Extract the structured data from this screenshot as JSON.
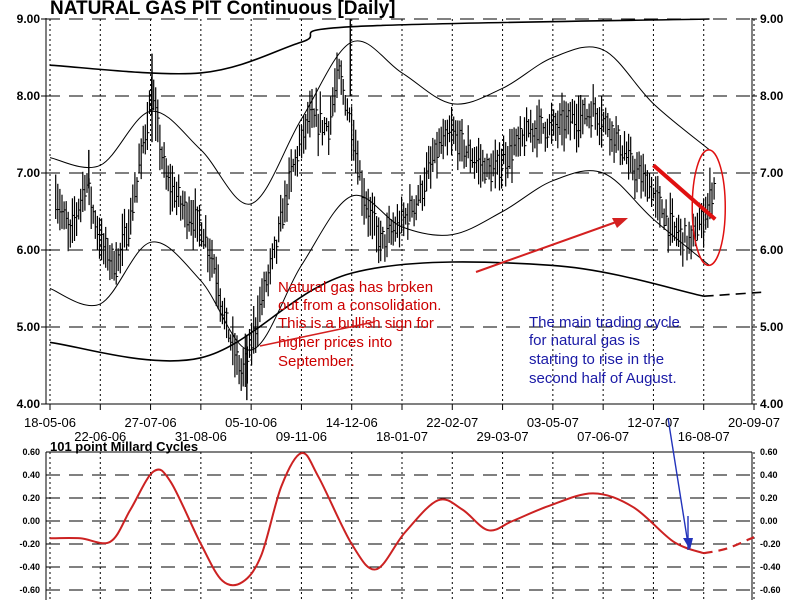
{
  "colors": {
    "cycle": "#cc2222",
    "trend": "#e01010",
    "annotation_red": "#cc0000",
    "annotation_blue": "#1a1aa6",
    "arrow_blue": "#2233bb"
  },
  "chart_data": [
    {
      "type": "candlestick",
      "title": "NATURAL GAS PIT Continuous  [Daily]",
      "ylim": [
        4.0,
        9.0
      ],
      "y_ticks": [
        "9.00",
        "8.00",
        "7.00",
        "6.00",
        "5.00",
        "4.00"
      ],
      "x_labels_top": [
        "18-05-06",
        "27-07-06",
        "05-10-06",
        "14-12-06",
        "22-02-07",
        "03-05-07",
        "12-07-07",
        "20-09-07"
      ],
      "x_labels_bottom": [
        "22-06-06",
        "31-08-06",
        "09-11-06",
        "18-01-07",
        "29-03-07",
        "07-06-07",
        "16-08-07"
      ],
      "x_dates": [
        "2006-05-18",
        "2006-06-22",
        "2006-07-27",
        "2006-08-31",
        "2006-10-05",
        "2006-11-09",
        "2006-12-14",
        "2007-01-18",
        "2007-02-22",
        "2007-03-29",
        "2007-05-03",
        "2007-06-07",
        "2007-07-12",
        "2007-08-16",
        "2007-09-20"
      ],
      "grid": true,
      "price_path": [
        [
          "2006-05-22",
          6.7
        ],
        [
          "2006-06-01",
          6.2
        ],
        [
          "2006-06-12",
          6.9
        ],
        [
          "2006-06-22",
          6.1
        ],
        [
          "2006-07-03",
          5.8
        ],
        [
          "2006-07-13",
          6.4
        ],
        [
          "2006-07-24",
          7.6
        ],
        [
          "2006-07-28",
          8.0
        ],
        [
          "2006-08-07",
          6.9
        ],
        [
          "2006-08-21",
          6.5
        ],
        [
          "2006-08-31",
          6.3
        ],
        [
          "2006-09-08",
          5.9
        ],
        [
          "2006-09-18",
          5.0
        ],
        [
          "2006-09-28",
          4.4
        ],
        [
          "2006-10-03",
          4.6
        ],
        [
          "2006-10-13",
          5.4
        ],
        [
          "2006-10-23",
          6.1
        ],
        [
          "2006-11-02",
          7.0
        ],
        [
          "2006-11-14",
          7.7
        ],
        [
          "2006-11-28",
          7.6
        ],
        [
          "2006-12-05",
          8.3
        ],
        [
          "2006-12-14",
          7.6
        ],
        [
          "2006-12-22",
          6.7
        ],
        [
          "2007-01-03",
          6.1
        ],
        [
          "2007-01-16",
          6.3
        ],
        [
          "2007-01-30",
          6.7
        ],
        [
          "2007-02-12",
          7.3
        ],
        [
          "2007-02-22",
          7.5
        ],
        [
          "2007-03-08",
          7.2
        ],
        [
          "2007-03-22",
          7.0
        ],
        [
          "2007-04-05",
          7.3
        ],
        [
          "2007-04-20",
          7.6
        ],
        [
          "2007-05-03",
          7.6
        ],
        [
          "2007-05-18",
          7.7
        ],
        [
          "2007-06-01",
          7.8
        ],
        [
          "2007-06-12",
          7.6
        ],
        [
          "2007-06-26",
          7.1
        ],
        [
          "2007-07-10",
          6.8
        ],
        [
          "2007-07-24",
          6.3
        ],
        [
          "2007-08-06",
          6.1
        ],
        [
          "2007-08-16",
          6.4
        ],
        [
          "2007-08-24",
          6.9
        ]
      ],
      "envelope_bands": [
        {
          "name": "upper",
          "points": [
            [
              "2006-05-18",
              7.2
            ],
            [
              "2006-06-22",
              7.1
            ],
            [
              "2006-07-27",
              7.8
            ],
            [
              "2006-08-31",
              7.3
            ],
            [
              "2006-10-05",
              6.6
            ],
            [
              "2006-11-09",
              7.7
            ],
            [
              "2006-12-14",
              8.7
            ],
            [
              "2007-01-18",
              8.3
            ],
            [
              "2007-02-22",
              7.9
            ],
            [
              "2007-03-29",
              8.1
            ],
            [
              "2007-05-03",
              8.5
            ],
            [
              "2007-06-07",
              8.6
            ],
            [
              "2007-07-12",
              7.9
            ],
            [
              "2007-08-20",
              7.3
            ]
          ]
        },
        {
          "name": "lower",
          "points": [
            [
              "2006-05-18",
              5.5
            ],
            [
              "2006-06-22",
              5.3
            ],
            [
              "2006-07-27",
              6.1
            ],
            [
              "2006-08-31",
              5.6
            ],
            [
              "2006-10-05",
              4.7
            ],
            [
              "2006-11-09",
              5.8
            ],
            [
              "2006-12-14",
              6.7
            ],
            [
              "2007-01-18",
              6.3
            ],
            [
              "2007-02-22",
              6.2
            ],
            [
              "2007-03-29",
              6.5
            ],
            [
              "2007-05-03",
              6.9
            ],
            [
              "2007-06-07",
              7.0
            ],
            [
              "2007-07-12",
              6.4
            ],
            [
              "2007-08-20",
              5.8
            ]
          ]
        },
        {
          "name": "outer-top",
          "points": [
            [
              "2006-05-18",
              8.4
            ],
            [
              "2006-08-31",
              8.3
            ],
            [
              "2006-11-09",
              8.7
            ],
            [
              "2006-12-14",
              8.9
            ],
            [
              "2007-08-20",
              9.0
            ]
          ]
        },
        {
          "name": "outer-bottom",
          "points": [
            [
              "2006-05-18",
              4.8
            ],
            [
              "2006-08-31",
              4.6
            ],
            [
              "2006-12-14",
              5.7
            ],
            [
              "2007-05-03",
              5.8
            ],
            [
              "2007-08-16",
              5.4
            ]
          ]
        },
        {
          "name": "outer-bottom-projection",
          "dashed": true,
          "points": [
            [
              "2007-08-16",
              5.4
            ],
            [
              "2007-09-25",
              5.45
            ]
          ]
        }
      ],
      "trendline": [
        [
          "2007-07-12",
          7.1
        ],
        [
          "2007-08-24",
          6.4
        ]
      ],
      "highlight_ellipse_range": {
        "x": [
          "2007-08-08",
          "2007-08-31"
        ],
        "y": [
          5.8,
          7.3
        ]
      },
      "annotations": [
        {
          "id": "breakout",
          "color": "red",
          "lines": [
            "Natural gas has broken",
            "out from a consolidation.",
            "This is a bullish sign for",
            "higher prices into",
            "September."
          ]
        },
        {
          "id": "cycle",
          "color": "blue",
          "lines": [
            "The main trading cycle",
            "for natural gas is",
            "starting to  rise in the",
            "second half of August."
          ]
        }
      ]
    },
    {
      "type": "line",
      "title": "101 point Millard Cycles",
      "ylim": [
        -0.6,
        0.6
      ],
      "y_ticks": [
        "0.60",
        "0.40",
        "0.20",
        "0.00",
        "-0.20",
        "-0.40",
        "-0.60"
      ],
      "series": [
        {
          "values": [
            [
              "2006-05-18",
              -0.15
            ],
            [
              "2006-06-08",
              -0.15
            ],
            [
              "2006-06-29",
              -0.18
            ],
            [
              "2006-07-13",
              0.1
            ],
            [
              "2006-07-29",
              0.43
            ],
            [
              "2006-08-10",
              0.34
            ],
            [
              "2006-08-31",
              -0.2
            ],
            [
              "2006-09-15",
              -0.52
            ],
            [
              "2006-09-29",
              -0.53
            ],
            [
              "2006-10-12",
              -0.3
            ],
            [
              "2006-10-26",
              0.3
            ],
            [
              "2006-11-09",
              0.59
            ],
            [
              "2006-11-21",
              0.38
            ],
            [
              "2006-12-14",
              -0.2
            ],
            [
              "2006-12-31",
              -0.42
            ],
            [
              "2007-01-20",
              -0.1
            ],
            [
              "2007-02-12",
              0.18
            ],
            [
              "2007-03-01",
              0.1
            ],
            [
              "2007-03-19",
              -0.08
            ],
            [
              "2007-04-05",
              0.0
            ],
            [
              "2007-04-30",
              0.13
            ],
            [
              "2007-05-31",
              0.24
            ],
            [
              "2007-06-28",
              0.12
            ],
            [
              "2007-07-26",
              -0.18
            ],
            [
              "2007-08-16",
              -0.28
            ]
          ]
        },
        {
          "dashed": true,
          "values": [
            [
              "2007-08-16",
              -0.28
            ],
            [
              "2007-09-01",
              -0.24
            ],
            [
              "2007-09-20",
              -0.14
            ]
          ]
        }
      ]
    }
  ]
}
